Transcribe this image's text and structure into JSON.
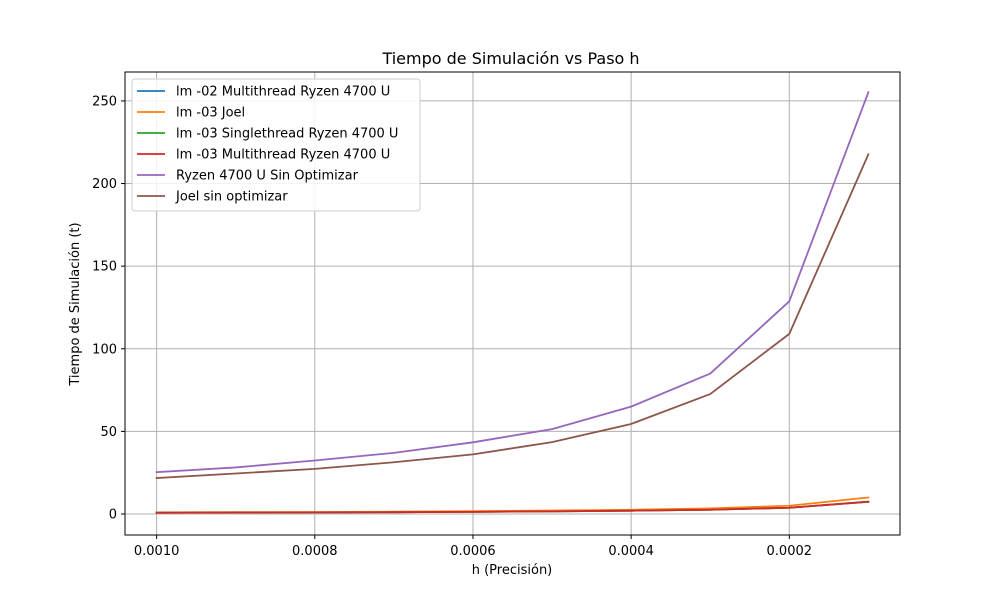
{
  "chart_data": {
    "type": "line",
    "title": "Tiempo de Simulación vs Paso h",
    "xlabel": "h (Precisión)",
    "ylabel": "Tiempo de Simulación (t)",
    "x": [
      0.001,
      0.0009,
      0.0008,
      0.0007,
      0.0006,
      0.0005,
      0.0004,
      0.0003,
      0.0002,
      0.0001
    ],
    "x_ticks": [
      0.001,
      0.0008,
      0.0006,
      0.0004,
      0.0002
    ],
    "x_tick_labels": [
      "0.0010",
      "0.0008",
      "0.0006",
      "0.0004",
      "0.0002"
    ],
    "x_inverted": true,
    "xlim": [
      0.00104,
      6e-05
    ],
    "y_ticks": [
      0,
      50,
      100,
      150,
      200,
      250
    ],
    "y_tick_labels": [
      "0",
      "50",
      "100",
      "150",
      "200",
      "250"
    ],
    "ylim": [
      -12.7,
      267.5
    ],
    "grid": true,
    "legend_position": "upper-left",
    "series": [
      {
        "name": "lm -02 Multithread Ryzen 4700 U",
        "color": "#1f77b4",
        "values": [
          0.8,
          0.9,
          1.0,
          1.1,
          1.3,
          1.6,
          2.0,
          2.6,
          3.8,
          7.5
        ]
      },
      {
        "name": "lm -03 Joel",
        "color": "#ff7f0e",
        "values": [
          1.0,
          1.1,
          1.2,
          1.4,
          1.7,
          2.1,
          2.6,
          3.4,
          5.0,
          10.0
        ]
      },
      {
        "name": "lm -03 Singlethread Ryzen 4700 U",
        "color": "#2ca02c",
        "values": [
          0.8,
          0.9,
          1.0,
          1.1,
          1.3,
          1.6,
          2.0,
          2.6,
          3.8,
          7.4
        ]
      },
      {
        "name": "lm -03 Multithread Ryzen 4700 U",
        "color": "#d62728",
        "values": [
          0.8,
          0.9,
          1.0,
          1.1,
          1.3,
          1.6,
          2.0,
          2.6,
          3.8,
          7.4
        ]
      },
      {
        "name": "Ryzen 4700 U Sin Optimizar",
        "color": "#9467bd",
        "values": [
          25.3,
          28.2,
          32.4,
          37.0,
          43.4,
          51.4,
          65.0,
          85.0,
          128.7,
          255.2
        ]
      },
      {
        "name": "Joel sin optimizar",
        "color": "#8c564b",
        "values": [
          21.8,
          24.5,
          27.3,
          31.3,
          36.1,
          43.5,
          54.5,
          72.6,
          109.0,
          217.7
        ]
      }
    ]
  }
}
